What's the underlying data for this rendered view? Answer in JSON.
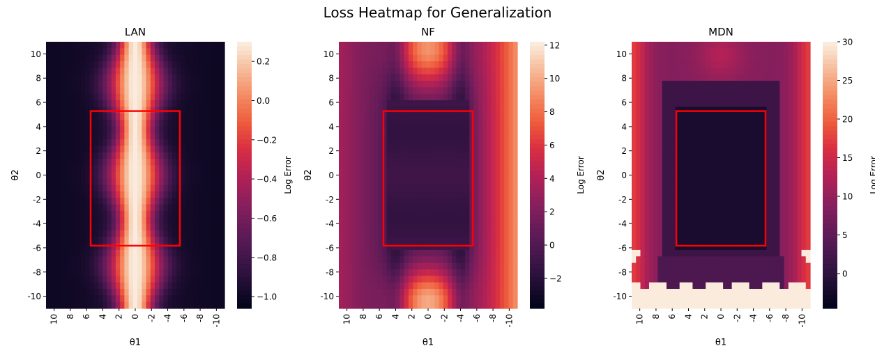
{
  "figure": {
    "title": "Loss Heatmap for Generalization"
  },
  "chart_data": [
    {
      "type": "heatmap",
      "title": "LAN",
      "xlabel": "θ1",
      "ylabel": "θ2",
      "x_ticks": [
        "10",
        "8",
        "6",
        "4",
        "2",
        "0",
        "-2",
        "-4",
        "-6",
        "-8",
        "-10"
      ],
      "y_ticks": [
        "10",
        "8",
        "6",
        "4",
        "2",
        "0",
        "-2",
        "-4",
        "-6",
        "-8",
        "-10"
      ],
      "xlim": [
        10,
        -10
      ],
      "ylim": [
        -10,
        10
      ],
      "colorbar": {
        "label": "Log Error",
        "ticks": [
          "0.2",
          "0.0",
          "−0.2",
          "−0.4",
          "−0.6",
          "−0.8",
          "−1.0"
        ],
        "tick_values": [
          0.2,
          0.0,
          -0.2,
          -0.4,
          -0.6,
          -0.8,
          -1.0
        ],
        "range": [
          -1.06,
          0.3
        ]
      },
      "pattern": "vertical bright band centered at θ1 ≈ 0 (≈0.25), dark elsewhere (≈ −1.0)",
      "rectangle": {
        "x": [
          5,
          -5
        ],
        "y": [
          -5.3,
          4.8
        ],
        "color": "#ff0000"
      }
    },
    {
      "type": "heatmap",
      "title": "NF",
      "xlabel": "θ1",
      "ylabel": "θ2",
      "x_ticks": [
        "10",
        "8",
        "6",
        "4",
        "2",
        "0",
        "-2",
        "-4",
        "-6",
        "-8",
        "-10"
      ],
      "y_ticks": [
        "10",
        "8",
        "6",
        "4",
        "2",
        "0",
        "-2",
        "-4",
        "-6",
        "-8",
        "-10"
      ],
      "xlim": [
        10,
        -10
      ],
      "ylim": [
        -10,
        10
      ],
      "colorbar": {
        "label": "Log Error",
        "ticks": [
          "12",
          "10",
          "8",
          "6",
          "4",
          "2",
          "0",
          "−2"
        ],
        "tick_values": [
          12,
          10,
          8,
          6,
          4,
          2,
          0,
          -2
        ],
        "range": [
          -3.8,
          12.2
        ]
      },
      "pattern": "low error in center column, high error blobs at top and bottom centers and at right edge",
      "rectangle": {
        "x": [
          5,
          -5
        ],
        "y": [
          -5.3,
          4.8
        ],
        "color": "#ff0000"
      }
    },
    {
      "type": "heatmap",
      "title": "MDN",
      "xlabel": "θ1",
      "ylabel": "θ2",
      "x_ticks": [
        "10",
        "8",
        "6",
        "4",
        "2",
        "0",
        "-2",
        "-4",
        "-6",
        "-8",
        "-10"
      ],
      "y_ticks": [
        "10",
        "8",
        "6",
        "4",
        "2",
        "0",
        "-2",
        "-4",
        "-6",
        "-8",
        "-10"
      ],
      "xlim": [
        10,
        -10
      ],
      "ylim": [
        -10,
        10
      ],
      "colorbar": {
        "label": "Log Error",
        "ticks": [
          "30",
          "25",
          "20",
          "15",
          "10",
          "5",
          "0"
        ],
        "tick_values": [
          30,
          25,
          20,
          15,
          10,
          5,
          0
        ],
        "range": [
          -4.5,
          30
        ]
      },
      "pattern": "very low error inside central rectangle, moderate/high toward edges, saturated at bottom",
      "rectangle": {
        "x": [
          5,
          -5
        ],
        "y": [
          -5.3,
          4.8
        ],
        "color": "#ff0000"
      }
    }
  ]
}
